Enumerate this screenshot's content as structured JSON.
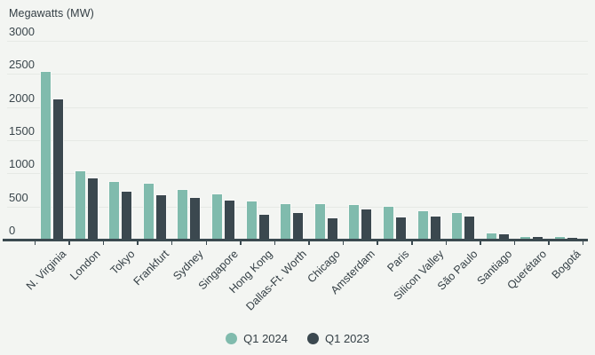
{
  "title": "Megawatts (MW)",
  "colors": {
    "background": "#f3f5f2",
    "gridline": "#e6e9e5",
    "axis": "#3b4a50",
    "text": "#333e44",
    "series_q1_2024": "#80bbad",
    "series_q1_2023": "#3b484f"
  },
  "chart_data": {
    "type": "bar",
    "title": "Megawatts (MW)",
    "ylabel": "Megawatts (MW)",
    "ylim": [
      0,
      3000
    ],
    "ytick_step": 500,
    "ytick_labels": [
      "0",
      "500",
      "1000",
      "1500",
      "2000",
      "2500",
      "3000"
    ],
    "grid": true,
    "legend_position": "bottom-center",
    "categories": [
      "N. Virginia",
      "London",
      "Tokyo",
      "Frankfurt",
      "Sydney",
      "Singapore",
      "Hong Kong",
      "Dallas-Ft. Worth",
      "Chicago",
      "Amsterdam",
      "Paris",
      "Silicon Valley",
      "São Paulo",
      "Santiago",
      "Querétaro",
      "Bogotá"
    ],
    "series": [
      {
        "name": "Q1 2024",
        "color": "#80bbad",
        "values": [
          2530,
          1030,
          865,
          840,
          750,
          680,
          575,
          540,
          530,
          525,
          490,
          430,
          400,
          95,
          45,
          42
        ]
      },
      {
        "name": "Q1 2023",
        "color": "#3b484f",
        "values": [
          2110,
          920,
          720,
          670,
          630,
          585,
          380,
          405,
          315,
          460,
          330,
          345,
          350,
          85,
          35,
          30
        ]
      }
    ]
  }
}
